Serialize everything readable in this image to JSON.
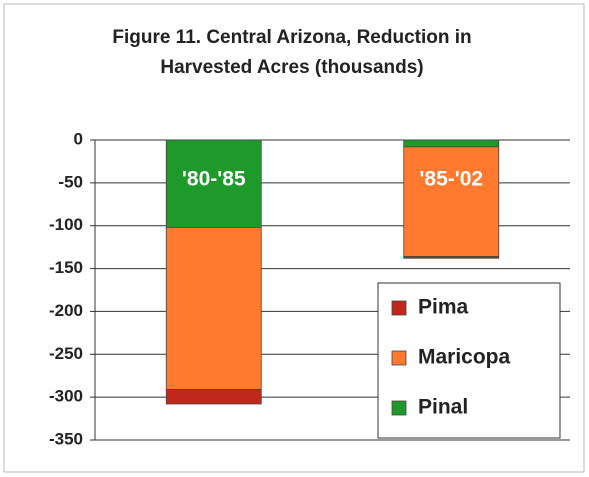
{
  "chart_data": {
    "type": "bar",
    "stacked": true,
    "title": [
      "Figure 11. Central Arizona, Reduction in",
      "Harvested Acres (thousands)"
    ],
    "categories": [
      "'80-'85",
      "'85-'02"
    ],
    "series": [
      {
        "name": "Pima",
        "color": "#c0281c",
        "values": [
          -17,
          -2
        ]
      },
      {
        "name": "Maricopa",
        "color": "#ff7a2e",
        "values": [
          -189,
          -128
        ]
      },
      {
        "name": "Pinal",
        "color": "#1e9a2a",
        "values": [
          -102,
          -8
        ]
      }
    ],
    "ylim": [
      -350,
      0
    ],
    "yticks": [
      0,
      -50,
      -100,
      -150,
      -200,
      -250,
      -300,
      -350
    ],
    "grid": true
  }
}
